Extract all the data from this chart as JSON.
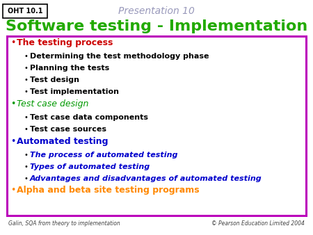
{
  "bg_color": "#ffffff",
  "title_presentation": "Presentation 10",
  "title_presentation_color": "#9999bb",
  "title_main": "Software testing - Implementation",
  "title_main_color": "#22aa00",
  "oht_label": "OHT 10.1",
  "footer_left": "Galin, SQA from theory to implementation",
  "footer_right": "© Pearson Education Limited 2004",
  "box_border_color": "#bb00bb",
  "box_bg_color": "#ffffff",
  "bullet_items": [
    {
      "level": 1,
      "text": "The testing process",
      "color": "#cc0000",
      "bold": true,
      "italic": false
    },
    {
      "level": 2,
      "text": "Determining the test methodology phase",
      "color": "#000000",
      "bold": true,
      "italic": false
    },
    {
      "level": 2,
      "text": "Planning the tests",
      "color": "#000000",
      "bold": true,
      "italic": false
    },
    {
      "level": 2,
      "text": "Test design",
      "color": "#000000",
      "bold": true,
      "italic": false
    },
    {
      "level": 2,
      "text": "Test implementation",
      "color": "#000000",
      "bold": true,
      "italic": false
    },
    {
      "level": 1,
      "text": "Test case design",
      "color": "#009900",
      "bold": false,
      "italic": true
    },
    {
      "level": 2,
      "text": "Test case data components",
      "color": "#000000",
      "bold": true,
      "italic": false
    },
    {
      "level": 2,
      "text": "Test case sources",
      "color": "#000000",
      "bold": true,
      "italic": false
    },
    {
      "level": 1,
      "text": "Automated testing",
      "color": "#0000cc",
      "bold": true,
      "italic": false
    },
    {
      "level": 2,
      "text": "The process of automated testing",
      "color": "#0000cc",
      "bold": true,
      "italic": true
    },
    {
      "level": 2,
      "text": "Types of automated testing",
      "color": "#0000cc",
      "bold": true,
      "italic": true
    },
    {
      "level": 2,
      "text": "Advantages and disadvantages of automated testing",
      "color": "#0000cc",
      "bold": true,
      "italic": true
    },
    {
      "level": 1,
      "text": "Alpha and beta site testing programs",
      "color": "#ff8800",
      "bold": true,
      "italic": false
    }
  ]
}
